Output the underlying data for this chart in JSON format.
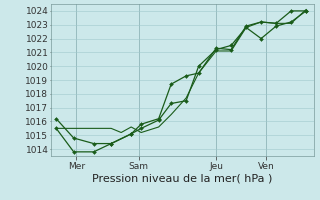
{
  "background_color": "#cce8ea",
  "plot_bg_color": "#cce8ea",
  "grid_color": "#a0c8cc",
  "line_color": "#1a5c1a",
  "marker_color": "#1a5c1a",
  "ylim": [
    1013.5,
    1024.5
  ],
  "yticks": [
    1014,
    1015,
    1016,
    1017,
    1018,
    1019,
    1020,
    1021,
    1022,
    1023,
    1024
  ],
  "xlabel": "Pression niveau de la mer( hPa )",
  "xlabel_fontsize": 8,
  "tick_fontsize": 6.5,
  "day_labels": [
    "Mer",
    "Sam",
    "Jeu",
    "Ven"
  ],
  "day_positions": [
    0.08,
    0.33,
    0.64,
    0.84
  ],
  "series1_x": [
    0.0,
    0.07,
    0.15,
    0.22,
    0.3,
    0.34,
    0.41,
    0.46,
    0.52,
    0.57,
    0.64,
    0.7,
    0.76,
    0.82,
    0.88,
    0.94,
    1.0
  ],
  "series1_y": [
    1016.2,
    1014.8,
    1014.4,
    1014.4,
    1015.1,
    1015.8,
    1016.2,
    1018.7,
    1019.3,
    1019.5,
    1021.3,
    1021.2,
    1022.9,
    1023.2,
    1023.1,
    1024.0,
    1024.0
  ],
  "series2_x": [
    0.0,
    0.07,
    0.15,
    0.22,
    0.3,
    0.34,
    0.41,
    0.46,
    0.52,
    0.57,
    0.64,
    0.7,
    0.76,
    0.82,
    0.88,
    0.94,
    1.0
  ],
  "series2_y": [
    1015.5,
    1013.8,
    1013.8,
    1014.4,
    1015.1,
    1015.5,
    1016.1,
    1017.3,
    1017.5,
    1020.0,
    1021.2,
    1021.5,
    1022.8,
    1022.0,
    1022.9,
    1023.2,
    1024.0
  ],
  "series3_x": [
    0.0,
    0.07,
    0.15,
    0.22,
    0.26,
    0.3,
    0.34,
    0.41,
    0.46,
    0.52,
    0.57,
    0.64,
    0.7,
    0.76,
    0.82,
    0.88,
    0.94,
    1.0
  ],
  "series3_y": [
    1015.5,
    1015.5,
    1015.5,
    1015.5,
    1015.2,
    1015.6,
    1015.2,
    1015.6,
    1016.5,
    1017.7,
    1019.5,
    1021.1,
    1021.1,
    1022.8,
    1023.2,
    1023.1,
    1023.1,
    1024.1
  ],
  "xlim": [
    -0.02,
    1.03
  ],
  "vlines_x": [
    0.08,
    0.33,
    0.64,
    0.84
  ],
  "vline_color": "#7a9a9a"
}
